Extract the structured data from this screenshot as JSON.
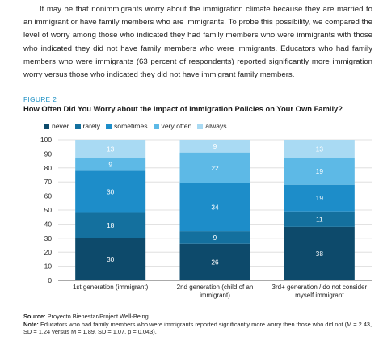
{
  "body": {
    "paragraph": "It may be that nonimmigrants worry about the immigration climate because they are married to an immigrant or have family members who are immigrants. To probe this possibility, we compared the level of worry among those who indicated they had family members who were immigrants with those who indicated they did not have family members who were immigrants. Educators who had family members who were immigrants (63 percent of respondents) reported significantly more immigration worry versus those who indicated they did not have immigrant family members."
  },
  "figure": {
    "label": "FIGURE 2",
    "title": "How Often Did You Worry about the Impact of Immigration Policies on Your Own Family?"
  },
  "chart_data": {
    "type": "bar",
    "stacked": true,
    "categories": [
      [
        "1st generation (immigrant)"
      ],
      [
        "2nd generation (child of an",
        "immigrant)"
      ],
      [
        "3rd+ generation / do not consider",
        "myself immigrant"
      ]
    ],
    "series": [
      {
        "name": "never",
        "color": "#0d4a6b",
        "values": [
          30,
          26,
          38
        ]
      },
      {
        "name": "rarely",
        "color": "#14709e",
        "values": [
          18,
          9,
          11
        ]
      },
      {
        "name": "sometimes",
        "color": "#1d8dc9",
        "values": [
          30,
          34,
          19
        ]
      },
      {
        "name": "very often",
        "color": "#5db9e6",
        "values": [
          9,
          22,
          19
        ]
      },
      {
        "name": "always",
        "color": "#a9daf3",
        "values": [
          13,
          9,
          13
        ]
      }
    ],
    "ylim": [
      0,
      100
    ],
    "yticks": [
      0,
      10,
      20,
      30,
      40,
      50,
      60,
      70,
      80,
      90,
      100
    ],
    "grid": true,
    "legend": "top-left"
  },
  "notes": {
    "source_label": "Source:",
    "source_text": " Proyecto Bienestar/Project Well-Being.",
    "note_label": "Note:",
    "note_text": " Educators who had family members who were immigrants reported significantly more worry then those who did not (M = 2.43, SD = 1.24 versus M = 1.89, SD = 1.07, p = 0.043)."
  }
}
